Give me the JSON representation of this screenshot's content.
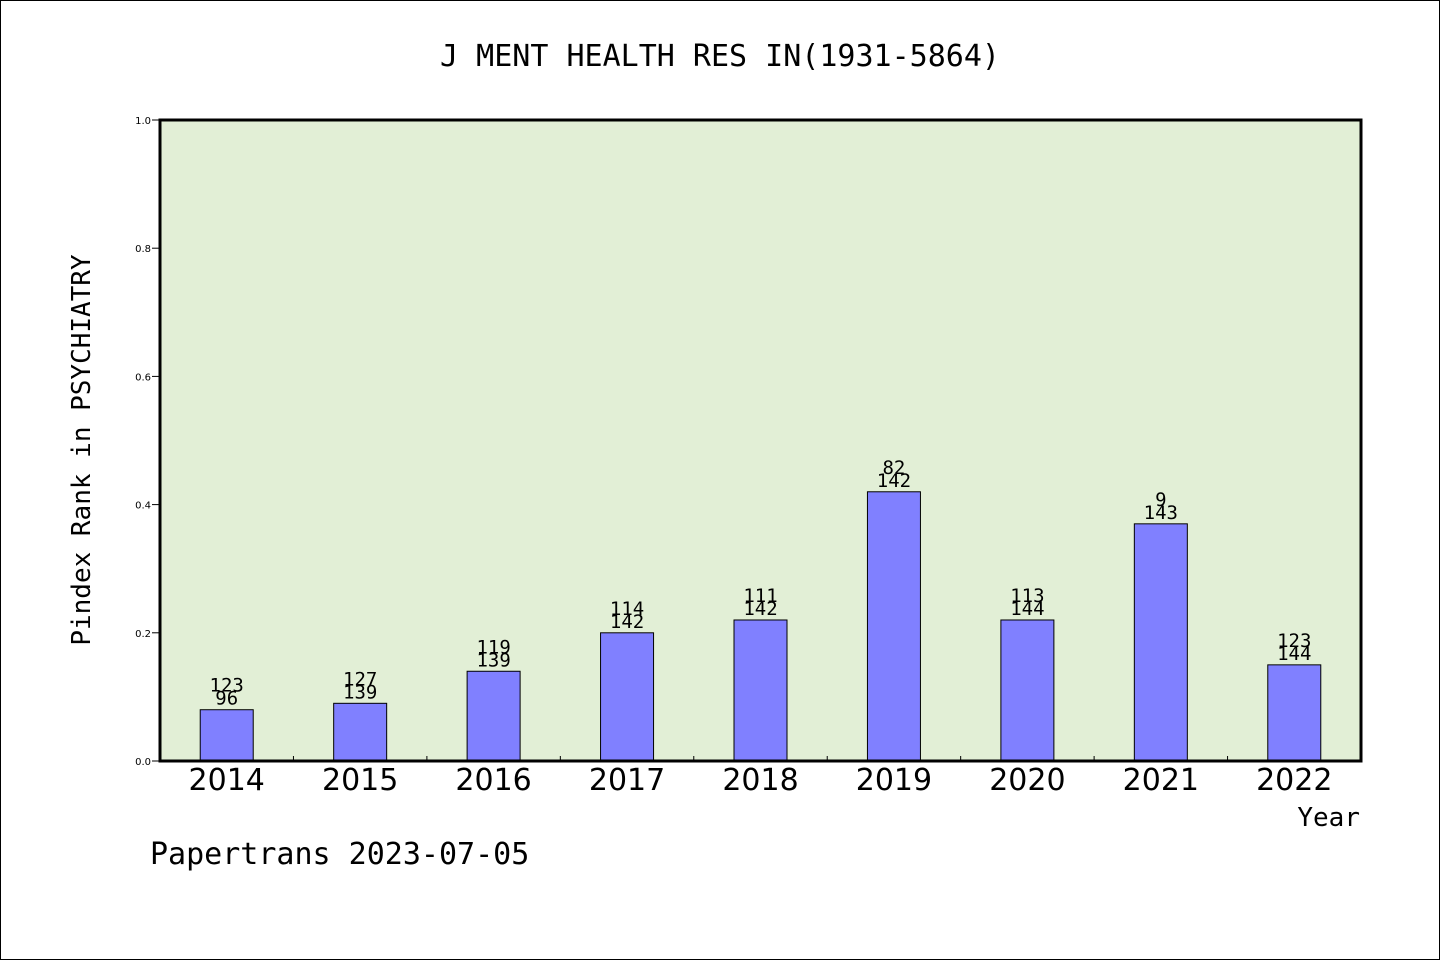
{
  "chart_data": {
    "type": "bar",
    "title": "J MENT HEALTH RES IN(1931-5864)",
    "xlabel": "Year",
    "ylabel": "Pindex Rank in PSYCHIATRY",
    "ylim": [
      0,
      1.0
    ],
    "yticks": [
      "0.0",
      "0.2",
      "0.4",
      "0.6",
      "0.8",
      "1.0"
    ],
    "categories": [
      "2014",
      "2015",
      "2016",
      "2017",
      "2018",
      "2019",
      "2020",
      "2021",
      "2022"
    ],
    "values": [
      0.08,
      0.09,
      0.14,
      0.2,
      0.22,
      0.42,
      0.22,
      0.37,
      0.15
    ],
    "labels_top": [
      "123",
      "127",
      "119",
      "114",
      "111",
      "82",
      "113",
      "9",
      "123"
    ],
    "labels_bottom": [
      "96",
      "139",
      "139",
      "142",
      "142",
      "142",
      "144",
      "143",
      "144"
    ],
    "grid": false,
    "colors": {
      "plot_bg": "#e2efd6",
      "bar": "#8080ff",
      "bar_edge": "#000000"
    }
  },
  "footer": "Papertrans 2023-07-05"
}
